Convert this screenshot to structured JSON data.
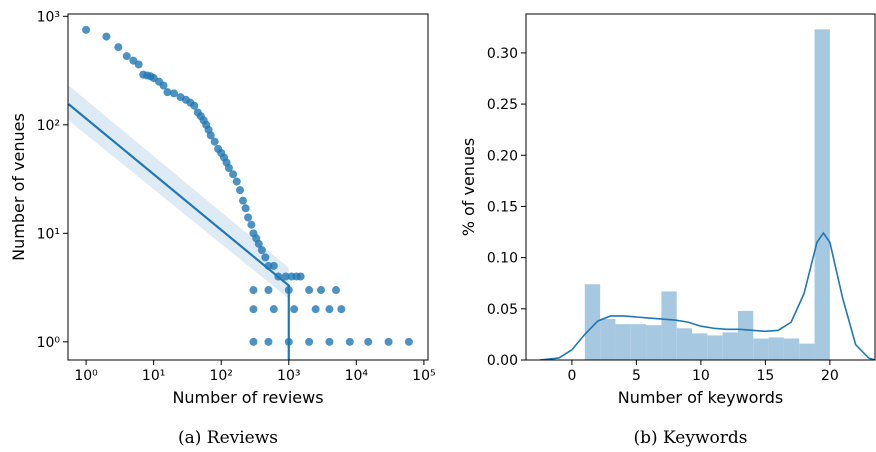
{
  "chart_data": [
    {
      "type": "scatter",
      "xlabel": "Number of reviews",
      "ylabel": "Number of venues",
      "caption": "(a) Reviews",
      "xscale": "log",
      "yscale": "log",
      "xlim": [
        0.54,
        115000
      ],
      "ylim": [
        0.68,
        1050
      ],
      "xticks": [
        {
          "value": 1,
          "label": "10⁰"
        },
        {
          "value": 10,
          "label": "10¹"
        },
        {
          "value": 100,
          "label": "10²"
        },
        {
          "value": 1000,
          "label": "10³"
        },
        {
          "value": 10000,
          "label": "10⁴"
        },
        {
          "value": 100000,
          "label": "10⁵"
        }
      ],
      "yticks": [
        {
          "value": 1,
          "label": "10⁰"
        },
        {
          "value": 10,
          "label": "10¹"
        },
        {
          "value": 100,
          "label": "10²"
        },
        {
          "value": 1000,
          "label": "10³"
        }
      ],
      "color": "#1f77b4",
      "x": [
        1,
        2,
        3,
        4,
        5,
        6,
        7,
        8,
        9,
        10,
        12,
        14,
        16,
        20,
        25,
        30,
        35,
        40,
        45,
        50,
        55,
        60,
        65,
        70,
        80,
        90,
        100,
        110,
        120,
        130,
        150,
        170,
        190,
        210,
        230,
        250,
        280,
        300,
        330,
        360,
        400,
        450,
        500,
        600,
        700,
        900,
        1100,
        1300,
        1500,
        300,
        500,
        1000,
        2000,
        3000,
        5000,
        300,
        600,
        1200,
        2500,
        4000,
        6000,
        300,
        500,
        1000,
        2000,
        4000,
        8000,
        15000,
        30000,
        60000
      ],
      "values": [
        750,
        650,
        520,
        430,
        390,
        360,
        290,
        285,
        280,
        270,
        250,
        230,
        200,
        195,
        180,
        170,
        160,
        150,
        130,
        120,
        110,
        100,
        90,
        80,
        70,
        60,
        55,
        50,
        45,
        40,
        35,
        30,
        25,
        20,
        17,
        14,
        12,
        10,
        9,
        8,
        7,
        6,
        5,
        5,
        4,
        4,
        4,
        4,
        4,
        3,
        3,
        3,
        3,
        3,
        3,
        2,
        2,
        2,
        2,
        2,
        2,
        1,
        1,
        1,
        1,
        1,
        1,
        1,
        1,
        1
      ],
      "fit": {
        "x": [
          0.55,
          1000,
          1000
        ],
        "values": [
          155,
          3.3,
          0.68
        ]
      },
      "band": {
        "x": [
          0.55,
          1000
        ],
        "lower": [
          110,
          2.5
        ],
        "upper": [
          230,
          4.8
        ]
      }
    },
    {
      "type": "histogram",
      "xlabel": "Number of keywords",
      "ylabel": "% of venues",
      "caption": "(b) Keywords",
      "xlim": [
        -3.56,
        23.5
      ],
      "ylim": [
        0,
        0.338
      ],
      "xticks": [
        0,
        5,
        10,
        15,
        20
      ],
      "yticks": [
        {
          "value": 0,
          "label": "0.00"
        },
        {
          "value": 0.05,
          "label": "0.05"
        },
        {
          "value": 0.1,
          "label": "0.10"
        },
        {
          "value": 0.15,
          "label": "0.15"
        },
        {
          "value": 0.2,
          "label": "0.20"
        },
        {
          "value": 0.25,
          "label": "0.25"
        },
        {
          "value": 0.3,
          "label": "0.30"
        }
      ],
      "color": "#a6c8e0",
      "bins": [
        1,
        2.1875,
        3.375,
        4.5625,
        5.75,
        6.9375,
        8.125,
        9.3125,
        10.5,
        11.6875,
        12.875,
        14.0625,
        15.25,
        16.4375,
        17.625,
        18.8125,
        20
      ],
      "values": [
        0.074,
        0.04,
        0.035,
        0.035,
        0.034,
        0.067,
        0.031,
        0.026,
        0.024,
        0.027,
        0.048,
        0.021,
        0.022,
        0.021,
        0.016,
        0.323
      ],
      "kde": {
        "color": "#1f77b4",
        "x": [
          -2.5,
          -1,
          0,
          1,
          2,
          3,
          4,
          5,
          6,
          7,
          8,
          9,
          10,
          11,
          12,
          13,
          14,
          15,
          16,
          17,
          18,
          19,
          19.5,
          20,
          21,
          22,
          23,
          23.5
        ],
        "values": [
          0,
          0.002,
          0.01,
          0.025,
          0.038,
          0.043,
          0.043,
          0.042,
          0.041,
          0.04,
          0.039,
          0.037,
          0.033,
          0.031,
          0.03,
          0.03,
          0.029,
          0.028,
          0.029,
          0.037,
          0.065,
          0.115,
          0.124,
          0.115,
          0.06,
          0.015,
          0.002,
          0
        ]
      }
    }
  ]
}
